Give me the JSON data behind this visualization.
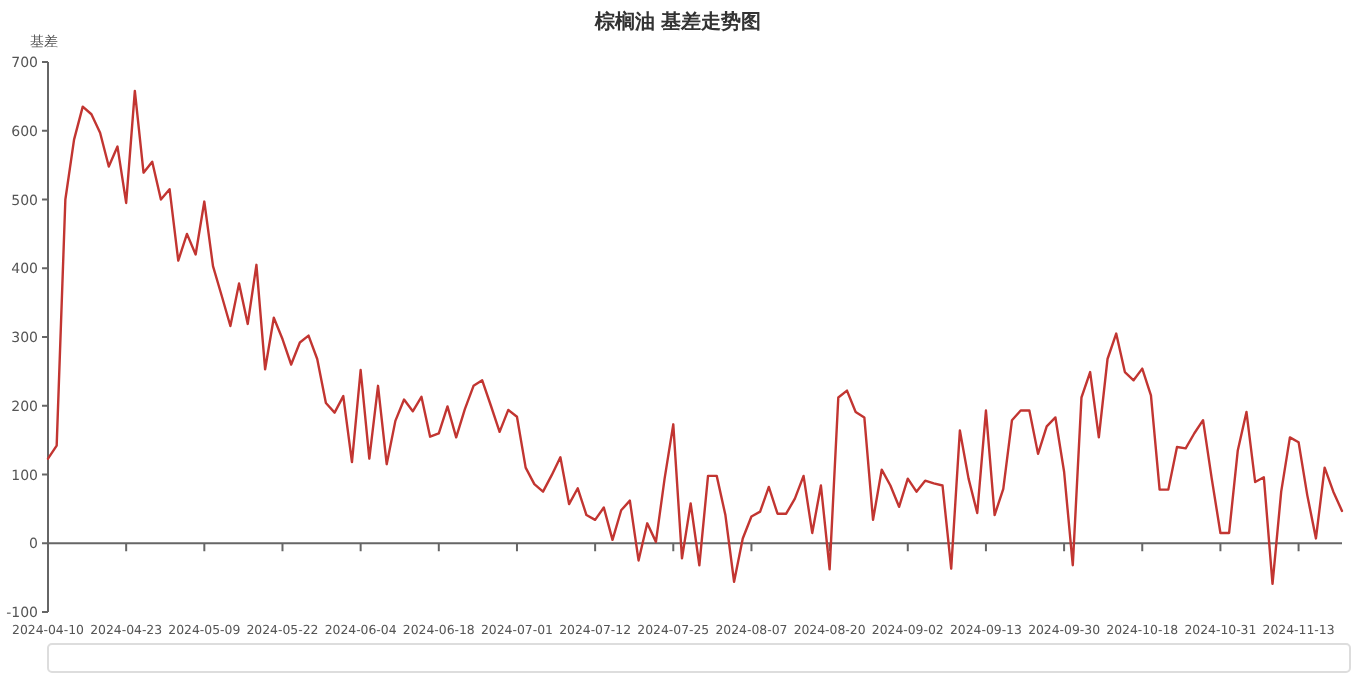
{
  "chart_data": {
    "type": "line",
    "title": "棕榈油 基差走势图",
    "ylabel": "基差",
    "categories": [
      "2024-04-10",
      null,
      null,
      null,
      null,
      null,
      null,
      null,
      null,
      "2024-04-23",
      null,
      null,
      null,
      null,
      null,
      null,
      null,
      null,
      "2024-05-09",
      null,
      null,
      null,
      null,
      null,
      null,
      null,
      null,
      "2024-05-22",
      null,
      null,
      null,
      null,
      null,
      null,
      null,
      null,
      "2024-06-04",
      null,
      null,
      null,
      null,
      null,
      null,
      null,
      null,
      "2024-06-18",
      null,
      null,
      null,
      null,
      null,
      null,
      null,
      null,
      "2024-07-01",
      null,
      null,
      null,
      null,
      null,
      null,
      null,
      null,
      "2024-07-12",
      null,
      null,
      null,
      null,
      null,
      null,
      null,
      null,
      "2024-07-25",
      null,
      null,
      null,
      null,
      null,
      null,
      null,
      null,
      "2024-08-07",
      null,
      null,
      null,
      null,
      null,
      null,
      null,
      null,
      "2024-08-20",
      null,
      null,
      null,
      null,
      null,
      null,
      null,
      null,
      "2024-09-02",
      null,
      null,
      null,
      null,
      null,
      null,
      null,
      null,
      "2024-09-13",
      null,
      null,
      null,
      null,
      null,
      null,
      null,
      null,
      "2024-09-30",
      null,
      null,
      null,
      null,
      null,
      null,
      null,
      null,
      "2024-10-18",
      null,
      null,
      null,
      null,
      null,
      null,
      null,
      null,
      "2024-10-31",
      null,
      null,
      null,
      null,
      null,
      null,
      null,
      null,
      "2024-11-13",
      null,
      null,
      null,
      null,
      null
    ],
    "series": [
      {
        "color": "#c23531",
        "values": [
          123,
          142,
          500,
          587,
          635,
          624,
          597,
          548,
          577,
          495,
          658,
          539,
          555,
          500,
          515,
          411,
          450,
          420,
          497,
          403,
          360,
          316,
          378,
          319,
          405,
          253,
          328,
          297,
          260,
          292,
          302,
          268,
          204,
          190,
          214,
          118,
          252,
          123,
          229,
          115,
          178,
          209,
          192,
          213,
          155,
          160,
          199,
          154,
          195,
          229,
          237,
          200,
          162,
          194,
          184,
          110,
          86,
          75,
          99,
          125,
          57,
          80,
          41,
          34,
          52,
          5,
          48,
          62,
          -25,
          29,
          2,
          94,
          173,
          -22,
          58,
          -32,
          98,
          98,
          41,
          -56,
          7,
          39,
          46,
          82,
          43,
          43,
          65,
          98,
          15,
          84,
          -38,
          212,
          222,
          191,
          183,
          34,
          107,
          84,
          53,
          94,
          75,
          91,
          87,
          84,
          -37,
          164,
          94,
          44,
          193,
          41,
          79,
          179,
          193,
          193,
          130,
          170,
          183,
          104,
          -32,
          212,
          249,
          154,
          268,
          305,
          249,
          237,
          254,
          215,
          78,
          78,
          140,
          138,
          160,
          179,
          94,
          15,
          15,
          135,
          191,
          89,
          96,
          -59,
          75,
          154,
          147,
          70,
          7,
          110,
          75,
          47
        ]
      }
    ],
    "ylim": [
      -100,
      700
    ],
    "yticks": [
      -100,
      0,
      100,
      200,
      300,
      400,
      500,
      600,
      700
    ]
  }
}
